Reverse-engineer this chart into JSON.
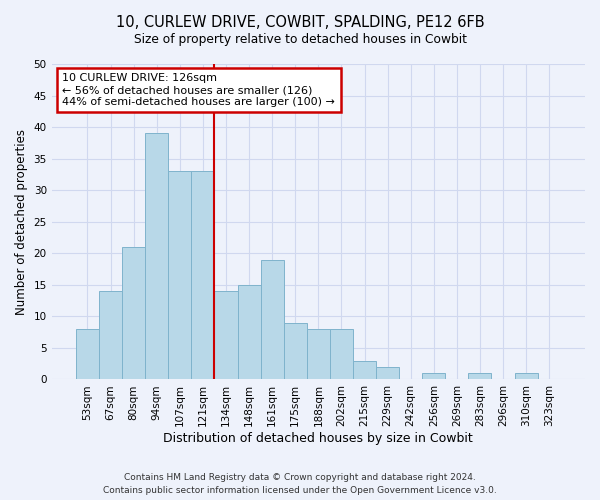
{
  "title_line1": "10, CURLEW DRIVE, COWBIT, SPALDING, PE12 6FB",
  "title_line2": "Size of property relative to detached houses in Cowbit",
  "xlabel": "Distribution of detached houses by size in Cowbit",
  "ylabel": "Number of detached properties",
  "bar_labels": [
    "53sqm",
    "67sqm",
    "80sqm",
    "94sqm",
    "107sqm",
    "121sqm",
    "134sqm",
    "148sqm",
    "161sqm",
    "175sqm",
    "188sqm",
    "202sqm",
    "215sqm",
    "229sqm",
    "242sqm",
    "256sqm",
    "269sqm",
    "283sqm",
    "296sqm",
    "310sqm",
    "323sqm"
  ],
  "bar_values": [
    8,
    14,
    21,
    39,
    33,
    33,
    14,
    15,
    19,
    9,
    8,
    8,
    3,
    2,
    0,
    1,
    0,
    1,
    0,
    1,
    0
  ],
  "bar_color": "#b8d8e8",
  "bar_edge_color": "#7fb3cc",
  "marker_bin_index": 5,
  "marker_color": "#cc0000",
  "annotation_title": "10 CURLEW DRIVE: 126sqm",
  "annotation_line1": "← 56% of detached houses are smaller (126)",
  "annotation_line2": "44% of semi-detached houses are larger (100) →",
  "annotation_box_color": "#ffffff",
  "annotation_box_edge": "#cc0000",
  "ylim": [
    0,
    50
  ],
  "yticks": [
    0,
    5,
    10,
    15,
    20,
    25,
    30,
    35,
    40,
    45,
    50
  ],
  "footer_line1": "Contains HM Land Registry data © Crown copyright and database right 2024.",
  "footer_line2": "Contains public sector information licensed under the Open Government Licence v3.0.",
  "bg_color": "#eef2fb",
  "grid_color": "#d0d8ef"
}
